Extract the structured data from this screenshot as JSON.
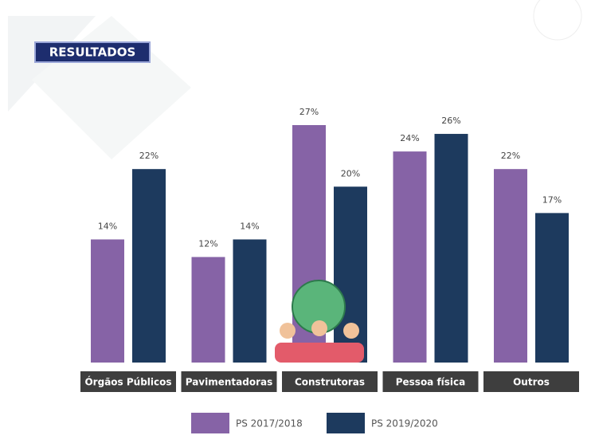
{
  "badge": "RESULTADOS",
  "chart_data": {
    "type": "bar",
    "categories": [
      "Órgãos Públicos",
      "Pavimentadoras",
      "Construtoras",
      "Pessoa física",
      "Outros"
    ],
    "series": [
      {
        "name": "PS 2017/2018",
        "color": "#8663a6",
        "values": [
          14,
          12,
          27,
          24,
          22
        ],
        "value_labels": [
          "14%",
          "12%",
          "27%",
          "24%",
          "22%"
        ]
      },
      {
        "name": "PS 2019/2020",
        "color": "#1d3a5e",
        "values": [
          22,
          14,
          20,
          26,
          17
        ],
        "value_labels": [
          "22%",
          "14%",
          "20%",
          "26%",
          "17%"
        ]
      }
    ]
  }
}
